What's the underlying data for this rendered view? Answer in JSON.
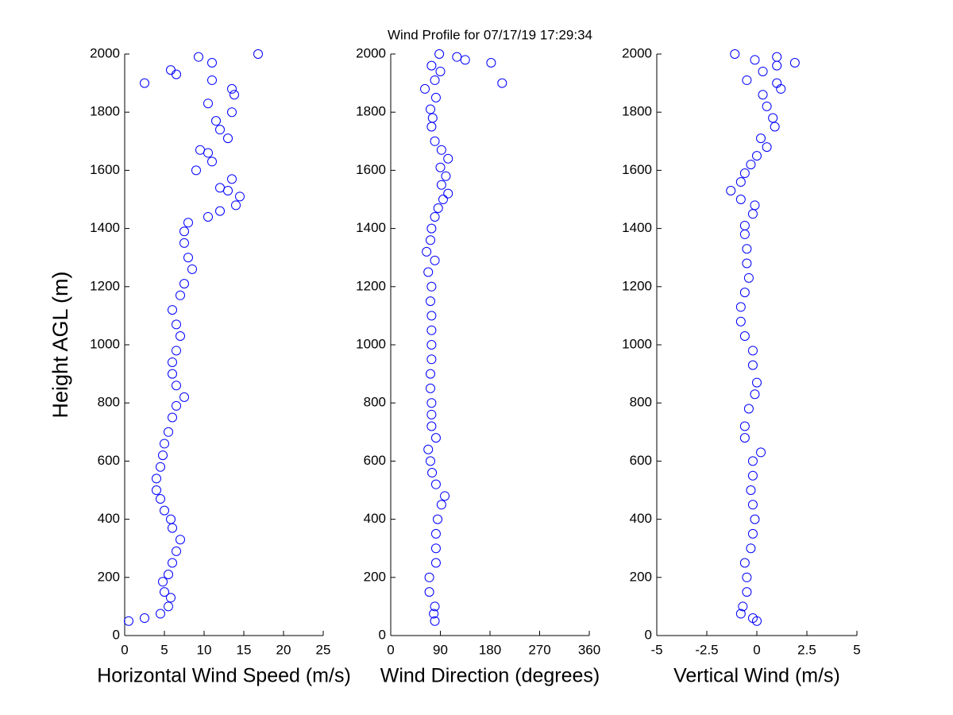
{
  "chart_data": [
    {
      "type": "scatter",
      "ylabel": "Height AGL (m)",
      "xlabel": "Horizontal Wind Speed (m/s)",
      "color": "#0000ff",
      "marker": "circle",
      "x": [
        0.5,
        2.5,
        4.5,
        5.5,
        5.8,
        5,
        4.8,
        5.5,
        6,
        6.5,
        7,
        6,
        5.8,
        5,
        4.5,
        4,
        4,
        4.5,
        4.8,
        5,
        5.5,
        6,
        6.5,
        7.5,
        6.5,
        6,
        6,
        6.5,
        7,
        6.5,
        6,
        7,
        7.5,
        8.5,
        8,
        7.5,
        7.5,
        8,
        10.5,
        12,
        14,
        14.5,
        13,
        12,
        13.5,
        9,
        11,
        10.5,
        9.5,
        13,
        12,
        11.5,
        13.5,
        10.5,
        13.8,
        13.5,
        2.5,
        11,
        6.5,
        5.8,
        11,
        9.3,
        16.8
      ],
      "y": [
        50,
        60,
        75,
        100,
        130,
        150,
        185,
        210,
        250,
        290,
        330,
        370,
        400,
        430,
        470,
        500,
        540,
        580,
        620,
        660,
        700,
        750,
        790,
        820,
        860,
        900,
        940,
        980,
        1030,
        1070,
        1120,
        1170,
        1210,
        1260,
        1300,
        1350,
        1390,
        1420,
        1440,
        1460,
        1480,
        1510,
        1530,
        1540,
        1570,
        1600,
        1630,
        1660,
        1670,
        1710,
        1740,
        1770,
        1800,
        1830,
        1860,
        1880,
        1900,
        1910,
        1930,
        1945,
        1970,
        1990,
        2000
      ],
      "xlim": [
        0,
        25
      ],
      "xticks": [
        0,
        5,
        10,
        15,
        20,
        25
      ],
      "ylim": [
        0,
        2000
      ],
      "yticks": [
        0,
        200,
        400,
        600,
        800,
        1000,
        1200,
        1400,
        1600,
        1800,
        2000
      ]
    },
    {
      "type": "scatter",
      "title": "Wind Profile for  07/17/19 17:29:34",
      "xlabel": "Wind Direction (degrees)",
      "color": "#0000ff",
      "marker": "circle",
      "x": [
        80,
        78,
        80,
        70,
        70,
        82,
        82,
        82,
        85,
        92,
        98,
        82,
        75,
        72,
        68,
        82,
        74,
        74,
        74,
        72,
        72,
        74,
        74,
        74,
        74,
        72,
        74,
        68,
        80,
        65,
        72,
        74,
        80,
        86,
        95,
        104,
        92,
        100,
        90,
        104,
        92,
        80,
        74,
        76,
        72,
        82,
        62,
        202,
        80,
        90,
        74,
        182,
        135,
        120,
        88
      ],
      "y": [
        50,
        75,
        100,
        150,
        200,
        250,
        300,
        350,
        400,
        450,
        480,
        520,
        560,
        600,
        640,
        680,
        720,
        760,
        800,
        850,
        900,
        950,
        1000,
        1050,
        1100,
        1150,
        1200,
        1250,
        1290,
        1320,
        1360,
        1400,
        1440,
        1470,
        1500,
        1520,
        1550,
        1580,
        1610,
        1640,
        1670,
        1700,
        1750,
        1780,
        1810,
        1850,
        1880,
        1900,
        1910,
        1940,
        1960,
        1970,
        1980,
        1990,
        2000
      ],
      "xlim": [
        0,
        360
      ],
      "xticks": [
        0,
        90,
        180,
        270,
        360
      ],
      "ylim": [
        0,
        2000
      ],
      "yticks": [
        0,
        200,
        400,
        600,
        800,
        1000,
        1200,
        1400,
        1600,
        1800,
        2000
      ]
    },
    {
      "type": "scatter",
      "xlabel": "Vertical Wind (m/s)",
      "color": "#0000ff",
      "marker": "circle",
      "x": [
        0,
        -0.2,
        -0.8,
        -0.7,
        -0.5,
        -0.5,
        -0.6,
        -0.3,
        -0.2,
        -0.1,
        -0.2,
        -0.3,
        -0.2,
        -0.2,
        0.2,
        -0.6,
        -0.6,
        -0.4,
        -0.1,
        0,
        -0.2,
        -0.2,
        -0.6,
        -0.8,
        -0.8,
        -0.6,
        -0.4,
        -0.5,
        -0.5,
        -0.6,
        -0.6,
        -0.2,
        -0.1,
        -0.8,
        -1.3,
        -0.8,
        -0.6,
        -0.3,
        0,
        0.5,
        0.2,
        0.9,
        0.8,
        0.5,
        0.3,
        1.2,
        1,
        -0.5,
        0.3,
        1.0,
        1.9,
        -0.1,
        1.0,
        -1.1
      ],
      "y": [
        50,
        60,
        75,
        100,
        150,
        200,
        250,
        300,
        350,
        400,
        450,
        500,
        550,
        600,
        630,
        680,
        720,
        780,
        830,
        870,
        930,
        980,
        1030,
        1080,
        1130,
        1180,
        1230,
        1280,
        1330,
        1380,
        1410,
        1450,
        1480,
        1500,
        1530,
        1560,
        1590,
        1620,
        1650,
        1680,
        1710,
        1750,
        1780,
        1820,
        1860,
        1880,
        1900,
        1910,
        1940,
        1960,
        1970,
        1980,
        1990,
        2000
      ],
      "xlim": [
        -5,
        5
      ],
      "xticks": [
        -5,
        -2.5,
        0,
        2.5,
        5
      ],
      "ylim": [
        0,
        2000
      ],
      "yticks": [
        0,
        200,
        400,
        600,
        800,
        1000,
        1200,
        1400,
        1600,
        1800,
        2000
      ]
    }
  ]
}
